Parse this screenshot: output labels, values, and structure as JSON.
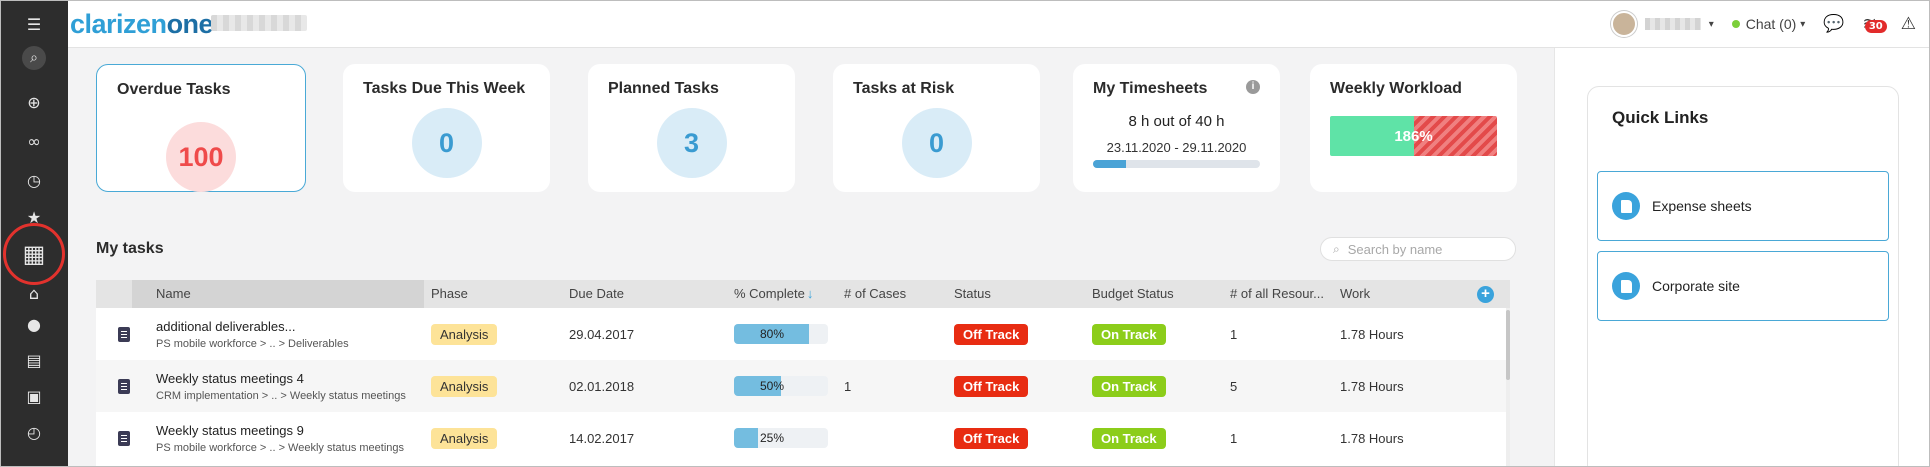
{
  "app": {
    "logo": "clarizen",
    "logo_suffix": "one"
  },
  "rail": {
    "items": [
      {
        "name": "menu-icon",
        "glyph": "☰"
      },
      {
        "name": "search-icon",
        "glyph": "⌕"
      },
      {
        "name": "add-icon",
        "glyph": "⊕"
      },
      {
        "name": "infinity-icon",
        "glyph": "∞"
      },
      {
        "name": "history-icon",
        "glyph": "◷"
      },
      {
        "name": "favorites-icon",
        "glyph": "★"
      },
      {
        "name": "dashboard-icon",
        "glyph": "▦"
      },
      {
        "name": "home-icon",
        "glyph": "⌂"
      },
      {
        "name": "chat-icon",
        "glyph": "●"
      },
      {
        "name": "briefcase-icon",
        "glyph": "▤"
      },
      {
        "name": "clipboard-icon",
        "glyph": "▣"
      },
      {
        "name": "timer-icon",
        "glyph": "◴"
      }
    ]
  },
  "topbar": {
    "chat_label": "Chat (0)",
    "notifications_count": "30"
  },
  "cards": {
    "overdue": {
      "title": "Overdue Tasks",
      "value": "100"
    },
    "due_week": {
      "title": "Tasks Due This Week",
      "value": "0"
    },
    "planned": {
      "title": "Planned Tasks",
      "value": "3"
    },
    "at_risk": {
      "title": "Tasks at Risk",
      "value": "0"
    },
    "timesheets": {
      "title": "My Timesheets",
      "hours": "8 h out of 40 h",
      "range": "23.11.2020 - 29.11.2020",
      "progress": 0.2
    },
    "workload": {
      "title": "Weekly Workload",
      "value": "186%",
      "normal_fraction": 0.5
    }
  },
  "my_tasks": {
    "title": "My tasks",
    "search_placeholder": "Search by name",
    "columns": {
      "name": "Name",
      "phase": "Phase",
      "due": "Due Date",
      "complete": "% Complete",
      "cases": "# of Cases",
      "status": "Status",
      "budget": "Budget Status",
      "resources": "# of all Resour...",
      "work": "Work"
    },
    "rows": [
      {
        "name": "additional deliverables...",
        "path": "PS mobile workforce  >  ..  >  Deliverables",
        "phase": "Analysis",
        "due": "29.04.2017",
        "pct": 80,
        "pct_label": "80%",
        "cases": "",
        "status": "Off Track",
        "budget": "On Track",
        "resources": "1",
        "work": "1.78 Hours"
      },
      {
        "name": "Weekly status meetings 4",
        "path": "CRM implementation  >  ..  >  Weekly status meetings",
        "phase": "Analysis",
        "due": "02.01.2018",
        "pct": 50,
        "pct_label": "50%",
        "cases": "1",
        "status": "Off Track",
        "budget": "On Track",
        "resources": "5",
        "work": "1.78 Hours"
      },
      {
        "name": "Weekly status meetings 9",
        "path": "PS mobile workforce  >  ..  >  Weekly status meetings",
        "phase": "Analysis",
        "due": "14.02.2017",
        "pct": 25,
        "pct_label": "25%",
        "cases": "",
        "status": "Off Track",
        "budget": "On Track",
        "resources": "1",
        "work": "1.78 Hours"
      }
    ]
  },
  "quick_links": {
    "title": "Quick Links",
    "items": [
      {
        "label": "Expense sheets"
      },
      {
        "label": "Corporate site"
      }
    ]
  }
}
